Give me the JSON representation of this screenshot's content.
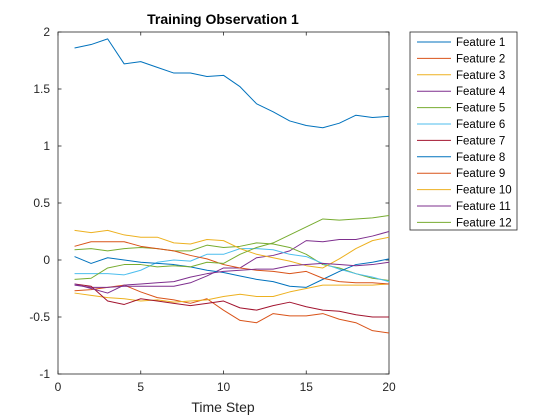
{
  "chart_data": {
    "type": "line",
    "title": "Training Observation 1",
    "xlabel": "Time Step",
    "ylabel": "",
    "xlim": [
      0,
      20
    ],
    "ylim": [
      -1,
      2
    ],
    "xticks": [
      0,
      5,
      10,
      15,
      20
    ],
    "yticks": [
      -1,
      -0.5,
      0,
      0.5,
      1,
      1.5,
      2
    ],
    "grid": false,
    "legend_location": "outside-top-right",
    "x": [
      1,
      2,
      3,
      4,
      5,
      6,
      7,
      8,
      9,
      10,
      11,
      12,
      13,
      14,
      15,
      16,
      17,
      18,
      19,
      20
    ],
    "series": [
      {
        "name": "Feature 1",
        "color": "#0072BD",
        "values": [
          1.86,
          1.89,
          1.94,
          1.72,
          1.74,
          1.69,
          1.64,
          1.64,
          1.61,
          1.62,
          1.52,
          1.37,
          1.3,
          1.22,
          1.18,
          1.16,
          1.2,
          1.27,
          1.25,
          1.26
        ]
      },
      {
        "name": "Feature 2",
        "color": "#D95319",
        "values": [
          -0.27,
          -0.26,
          -0.24,
          -0.22,
          -0.28,
          -0.33,
          -0.35,
          -0.38,
          -0.34,
          -0.44,
          -0.53,
          -0.55,
          -0.47,
          -0.49,
          -0.49,
          -0.47,
          -0.52,
          -0.55,
          -0.62,
          -0.64
        ]
      },
      {
        "name": "Feature 3",
        "color": "#EDB120",
        "values": [
          -0.29,
          -0.31,
          -0.33,
          -0.34,
          -0.36,
          -0.35,
          -0.37,
          -0.36,
          -0.35,
          -0.32,
          -0.3,
          -0.32,
          -0.32,
          -0.28,
          -0.25,
          -0.22,
          -0.22,
          -0.22,
          -0.22,
          -0.21
        ]
      },
      {
        "name": "Feature 4",
        "color": "#7E2F8E",
        "values": [
          -0.22,
          -0.24,
          -0.24,
          -0.23,
          -0.23,
          -0.23,
          -0.23,
          -0.2,
          -0.14,
          -0.07,
          -0.07,
          0.02,
          0.04,
          0.08,
          0.17,
          0.16,
          0.18,
          0.18,
          0.21,
          0.25
        ]
      },
      {
        "name": "Feature 5",
        "color": "#77AC30",
        "values": [
          0.09,
          0.1,
          0.08,
          0.1,
          0.11,
          0.1,
          0.08,
          0.08,
          0.13,
          0.11,
          0.12,
          0.15,
          0.14,
          0.11,
          0.05,
          -0.04,
          -0.07,
          -0.12,
          -0.16,
          -0.18
        ]
      },
      {
        "name": "Feature 6",
        "color": "#4DBEEE",
        "values": [
          -0.12,
          -0.12,
          -0.12,
          -0.13,
          -0.09,
          -0.02,
          0.0,
          -0.01,
          0.05,
          0.05,
          0.1,
          0.1,
          0.09,
          0.05,
          0.03,
          -0.03,
          -0.08,
          -0.12,
          -0.15,
          -0.19
        ]
      },
      {
        "name": "Feature 7",
        "color": "#A2142F",
        "values": [
          -0.21,
          -0.23,
          -0.36,
          -0.39,
          -0.34,
          -0.36,
          -0.38,
          -0.4,
          -0.38,
          -0.36,
          -0.42,
          -0.44,
          -0.4,
          -0.37,
          -0.41,
          -0.44,
          -0.45,
          -0.48,
          -0.5,
          -0.5
        ]
      },
      {
        "name": "Feature 8",
        "color": "#0072BD",
        "values": [
          0.03,
          -0.03,
          0.02,
          0.0,
          -0.02,
          -0.03,
          -0.04,
          -0.06,
          -0.09,
          -0.11,
          -0.14,
          -0.17,
          -0.19,
          -0.23,
          -0.24,
          -0.17,
          -0.1,
          -0.04,
          -0.02,
          0.01
        ]
      },
      {
        "name": "Feature 9",
        "color": "#D95319",
        "values": [
          0.12,
          0.16,
          0.16,
          0.16,
          0.12,
          0.1,
          0.08,
          0.04,
          0.01,
          -0.04,
          -0.07,
          -0.09,
          -0.1,
          -0.12,
          -0.1,
          -0.16,
          -0.19,
          -0.2,
          -0.2,
          -0.21
        ]
      },
      {
        "name": "Feature 10",
        "color": "#EDB120",
        "values": [
          0.26,
          0.24,
          0.26,
          0.22,
          0.2,
          0.2,
          0.15,
          0.14,
          0.18,
          0.17,
          0.1,
          0.05,
          0.02,
          -0.01,
          -0.05,
          -0.07,
          0.01,
          0.1,
          0.17,
          0.2
        ]
      },
      {
        "name": "Feature 11",
        "color": "#7E2F8E",
        "values": [
          -0.21,
          -0.25,
          -0.29,
          -0.22,
          -0.21,
          -0.2,
          -0.19,
          -0.15,
          -0.12,
          -0.1,
          -0.09,
          -0.08,
          -0.08,
          -0.05,
          -0.04,
          -0.03,
          -0.04,
          -0.05,
          -0.04,
          -0.02
        ]
      },
      {
        "name": "Feature 12",
        "color": "#77AC30",
        "values": [
          -0.17,
          -0.16,
          -0.07,
          -0.04,
          -0.04,
          -0.06,
          -0.05,
          -0.06,
          -0.02,
          -0.03,
          0.05,
          0.11,
          0.15,
          0.22,
          0.29,
          0.36,
          0.35,
          0.36,
          0.37,
          0.39
        ]
      }
    ]
  }
}
